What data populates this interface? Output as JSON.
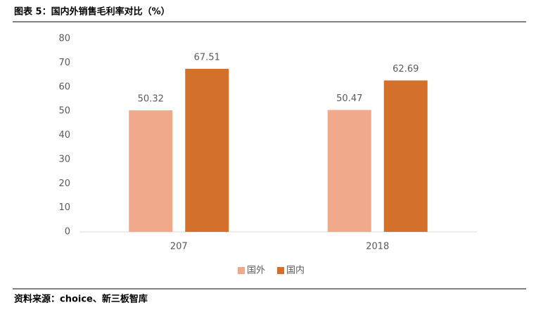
{
  "chart_data": {
    "type": "bar",
    "title": "图表 5：国内外销售毛利率对比（%）",
    "source": "资料来源：choice、新三板智库",
    "categories": [
      "207",
      "2018"
    ],
    "series": [
      {
        "name": "国外",
        "color": "#f1a98b",
        "values": [
          50.32,
          50.47
        ]
      },
      {
        "name": "国内",
        "color": "#d2702c",
        "values": [
          67.51,
          62.69
        ]
      }
    ],
    "ylim": [
      0,
      80
    ],
    "yticks": [
      0,
      10,
      20,
      30,
      40,
      50,
      60,
      70,
      80
    ],
    "grid": false,
    "legend": "bottom"
  }
}
